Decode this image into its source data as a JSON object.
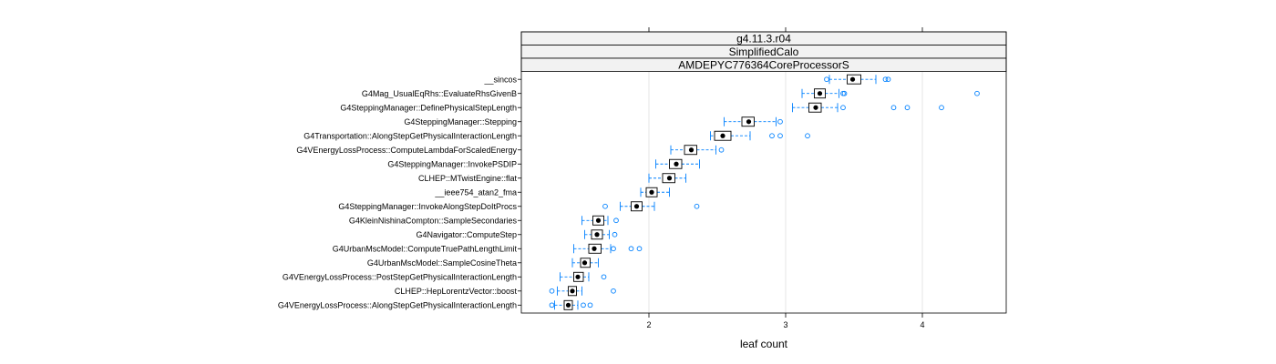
{
  "chart_data": {
    "type": "boxplot",
    "title": "",
    "xlabel": "leaf count",
    "ylabel": "",
    "xlim": [
      1.0,
      4.6
    ],
    "x_ticks": [
      2,
      3,
      4
    ],
    "grid": true,
    "strips": [
      "g4.11.3.r04",
      "SimplifiedCalo",
      "AMDEPYC776364CoreProcessorS"
    ],
    "colors": {
      "box": "#000000",
      "whisker": "#0080ff",
      "outlier": "#0080ff",
      "grid": "#e6e6e6",
      "strip_bg": "#f2f2f2"
    },
    "series": [
      {
        "name": "__sincos",
        "q1": 3.45,
        "median": 3.49,
        "q3": 3.55,
        "whisker_low": 3.32,
        "whisker_high": 3.66,
        "outliers": [
          3.3,
          3.73,
          3.75
        ]
      },
      {
        "name": "G4Mag_UsualEqRhs::EvaluateRhsGivenB",
        "q1": 3.21,
        "median": 3.25,
        "q3": 3.29,
        "whisker_low": 3.12,
        "whisker_high": 3.39,
        "outliers": [
          3.42,
          3.43,
          4.4
        ]
      },
      {
        "name": "G4SteppingManager::DefinePhysicalStepLength",
        "q1": 3.17,
        "median": 3.22,
        "q3": 3.26,
        "whisker_low": 3.05,
        "whisker_high": 3.38,
        "outliers": [
          3.42,
          3.79,
          3.89,
          4.14
        ]
      },
      {
        "name": "G4SteppingManager::Stepping",
        "q1": 2.68,
        "median": 2.73,
        "q3": 2.77,
        "whisker_low": 2.55,
        "whisker_high": 2.93,
        "outliers": [
          2.96
        ]
      },
      {
        "name": "G4Transportation::AlongStepGetPhysicalInteractionLength",
        "q1": 2.48,
        "median": 2.54,
        "q3": 2.6,
        "whisker_low": 2.45,
        "whisker_high": 2.74,
        "outliers": [
          2.9,
          2.96,
          3.16
        ]
      },
      {
        "name": "G4VEnergyLossProcess::ComputeLambdaForScaledEnergy",
        "q1": 2.26,
        "median": 2.31,
        "q3": 2.35,
        "whisker_low": 2.16,
        "whisker_high": 2.49,
        "outliers": [
          2.53
        ]
      },
      {
        "name": "G4SteppingManager::InvokePSDIP",
        "q1": 2.15,
        "median": 2.2,
        "q3": 2.24,
        "whisker_low": 2.05,
        "whisker_high": 2.37,
        "outliers": []
      },
      {
        "name": "CLHEP::MTwistEngine::flat",
        "q1": 2.1,
        "median": 2.15,
        "q3": 2.19,
        "whisker_low": 2.0,
        "whisker_high": 2.27,
        "outliers": []
      },
      {
        "name": "__ieee754_atan2_fma",
        "q1": 1.98,
        "median": 2.02,
        "q3": 2.06,
        "whisker_low": 1.94,
        "whisker_high": 2.15,
        "outliers": []
      },
      {
        "name": "G4SteppingManager::InvokeAlongStepDoItProcs",
        "q1": 1.87,
        "median": 1.91,
        "q3": 1.95,
        "whisker_low": 1.79,
        "whisker_high": 2.04,
        "outliers": [
          1.68,
          2.35
        ]
      },
      {
        "name": "G4KleinNishinaCompton::SampleSecondaries",
        "q1": 1.59,
        "median": 1.63,
        "q3": 1.67,
        "whisker_low": 1.51,
        "whisker_high": 1.7,
        "outliers": [
          1.76
        ]
      },
      {
        "name": "G4Navigator::ComputeStep",
        "q1": 1.58,
        "median": 1.62,
        "q3": 1.66,
        "whisker_low": 1.53,
        "whisker_high": 1.71,
        "outliers": [
          1.75
        ]
      },
      {
        "name": "G4UrbanMscModel::ComputeTruePathLengthLimit",
        "q1": 1.56,
        "median": 1.6,
        "q3": 1.65,
        "whisker_low": 1.45,
        "whisker_high": 1.72,
        "outliers": [
          1.74,
          1.87,
          1.93
        ]
      },
      {
        "name": "G4UrbanMscModel::SampleCosineTheta",
        "q1": 1.5,
        "median": 1.53,
        "q3": 1.57,
        "whisker_low": 1.44,
        "whisker_high": 1.63,
        "outliers": []
      },
      {
        "name": "G4VEnergyLossProcess::PostStepGetPhysicalInteractionLength",
        "q1": 1.45,
        "median": 1.48,
        "q3": 1.52,
        "whisker_low": 1.35,
        "whisker_high": 1.56,
        "outliers": [
          1.67
        ]
      },
      {
        "name": "CLHEP::HepLorentzVector::boost",
        "q1": 1.41,
        "median": 1.44,
        "q3": 1.47,
        "whisker_low": 1.33,
        "whisker_high": 1.51,
        "outliers": [
          1.29,
          1.74
        ]
      },
      {
        "name": "G4VEnergyLossProcess::AlongStepGetPhysicalInteractionLength",
        "q1": 1.38,
        "median": 1.41,
        "q3": 1.44,
        "whisker_low": 1.31,
        "whisker_high": 1.48,
        "outliers": [
          1.29,
          1.52,
          1.57
        ]
      }
    ]
  }
}
